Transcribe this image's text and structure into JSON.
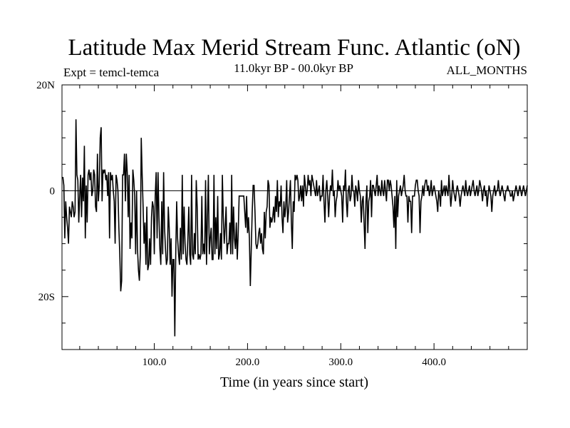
{
  "chart_data": {
    "type": "line",
    "title": "Latitude Max Merid Stream Func. Atlantic (oN)",
    "subtitle_left": "Expt = temcl-temca",
    "subtitle_center": "11.0kyr BP - 00.0kyr BP",
    "subtitle_right": "ALL_MONTHS",
    "xlabel": "Time (in years since start)",
    "ylabel": "",
    "xlim": [
      1,
      500
    ],
    "ylim": [
      -30,
      20
    ],
    "x_ticks": [
      {
        "value": 100,
        "label": "100.0"
      },
      {
        "value": 200,
        "label": "200.0"
      },
      {
        "value": 300,
        "label": "300.0"
      },
      {
        "value": 400,
        "label": "400.0"
      }
    ],
    "y_ticks": [
      {
        "value": 20,
        "label": "20N"
      },
      {
        "value": 0,
        "label": "0"
      },
      {
        "value": -20,
        "label": "20S"
      }
    ],
    "reference_line": 0,
    "series": [
      {
        "name": "latitude",
        "x_start": 1,
        "x_step": 1,
        "values": [
          2.5,
          2.5,
          1.0,
          -9.0,
          -2.0,
          -5.0,
          -7.0,
          -10.0,
          -3.0,
          -4.0,
          -5.0,
          -2.0,
          -3.0,
          -5.0,
          -4.0,
          13.5,
          3.0,
          2.0,
          -6.0,
          -1.0,
          3.0,
          -5.0,
          2.5,
          -2.0,
          8.5,
          -9.0,
          1.0,
          -6.0,
          3.0,
          4.0,
          2.0,
          3.5,
          -1.0,
          0.0,
          4.0,
          3.0,
          -3.0,
          -4.0,
          7.0,
          -2.0,
          1.0,
          10.0,
          12.0,
          -2.0,
          4.0,
          3.5,
          4.0,
          2.0,
          3.0,
          -1.0,
          3.5,
          -9.0,
          3.5,
          2.0,
          3.0,
          0.0,
          -2.0,
          -10.0,
          3.0,
          2.0,
          0.0,
          -7.0,
          -12.0,
          -19.0,
          -17.0,
          3.0,
          3.0,
          7.0,
          -2.0,
          7.0,
          3.5,
          -5.0,
          3.0,
          -11.0,
          -6.0,
          -9.0,
          4.0,
          2.0,
          -1.0,
          -12.0,
          0.0,
          -11.0,
          -15.0,
          -17.0,
          -12.0,
          10.0,
          3.0,
          -3.0,
          -10.0,
          -6.0,
          -14.0,
          -3.0,
          -15.0,
          -14.0,
          -9.0,
          -14.0,
          -5.0,
          -2.0,
          -3.0,
          -12.0,
          -1.0,
          3.5,
          -9.0,
          3.5,
          -5.0,
          -11.0,
          -14.0,
          -2.0,
          -12.0,
          3.5,
          -7.0,
          -11.0,
          -14.0,
          -13.0,
          -3.0,
          -7.0,
          -14.0,
          -9.0,
          -20.0,
          -13.0,
          -13.0,
          -27.5,
          -12.0,
          -2.0,
          -9.0,
          -12.0,
          -14.0,
          -7.0,
          -13.0,
          3.0,
          -12.0,
          -3.0,
          -10.0,
          -13.0,
          -14.0,
          -9.0,
          -3.0,
          -12.0,
          -14.0,
          3.0,
          -12.0,
          -13.0,
          -8.0,
          -12.0,
          2.0,
          -3.0,
          -13.0,
          -12.0,
          -13.0,
          -12.0,
          -1.0,
          -12.0,
          -10.0,
          -12.0,
          2.0,
          -14.0,
          -5.0,
          3.0,
          -12.0,
          -9.0,
          -7.0,
          -13.0,
          -13.0,
          3.0,
          -12.0,
          -5.0,
          -11.0,
          -1.0,
          -13.0,
          -12.0,
          -8.0,
          -13.0,
          3.0,
          -5.0,
          -10.0,
          -7.0,
          -3.0,
          -12.0,
          -10.0,
          -10.0,
          -6.0,
          -12.0,
          3.0,
          -12.0,
          -3.0,
          -9.0,
          -11.0,
          -6.0,
          -13.0,
          -8.0,
          -1.0,
          -1.0,
          -1.0,
          -1.0,
          -1.0,
          -1.0,
          -4.0,
          -7.0,
          -1.0,
          -8.0,
          -5.0,
          -9.0,
          -18.0,
          -11.0,
          -4.0,
          1.0,
          1.0,
          -4.0,
          -10.0,
          -11.0,
          -10.0,
          -8.0,
          -7.0,
          -10.0,
          -8.0,
          -11.0,
          -12.0,
          -4.0,
          -9.0,
          -4.0,
          -3.0,
          2.0,
          1.0,
          -7.0,
          -5.0,
          -6.0,
          -5.0,
          -3.0,
          -6.0,
          -1.0,
          -4.0,
          2.0,
          -5.0,
          -2.0,
          -3.0,
          1.0,
          -5.0,
          -8.0,
          -2.0,
          -5.0,
          -3.0,
          2.0,
          -6.0,
          -4.0,
          -1.0,
          2.0,
          -6.0,
          -11.0,
          -2.0,
          -4.0,
          3.0,
          2.0,
          3.0,
          2.0,
          -2.0,
          -1.0,
          1.0,
          -2.0,
          1.0,
          -3.0,
          3.0,
          1.0,
          -1.0,
          0.0,
          3.0,
          1.0,
          2.0,
          -1.0,
          3.0,
          2.0,
          1.0,
          0.0,
          -1.0,
          2.0,
          -1.0,
          0.0,
          1.0,
          -2.0,
          -1.0,
          -1.0,
          3.0,
          -2.0,
          -6.0,
          0.0,
          2.0,
          -1.0,
          -5.0,
          -1.0,
          1.0,
          0.0,
          4.0,
          -1.0,
          0.0,
          -5.0,
          -2.0,
          -1.0,
          2.0,
          0.0,
          1.0,
          0.0,
          -1.0,
          -6.0,
          1.0,
          0.0,
          4.0,
          -2.0,
          -5.0,
          0.0,
          1.0,
          -2.0,
          -1.0,
          3.0,
          0.0,
          0.0,
          -3.0,
          1.0,
          0.0,
          -2.0,
          2.0,
          0.0,
          -1.0,
          -6.0,
          -2.0,
          -1.0,
          -6.0,
          -11.0,
          -2.0,
          1.0,
          -8.0,
          -2.0,
          -1.0,
          2.0,
          -5.0,
          1.0,
          1.0,
          0.0,
          -1.0,
          1.0,
          3.0,
          -1.0,
          1.0,
          0.0,
          -1.0,
          2.0,
          0.0,
          -1.0,
          2.0,
          0.0,
          -2.0,
          2.0,
          2.0,
          0.0,
          2.0,
          1.0,
          -1.0,
          -3.0,
          -7.0,
          -1.0,
          -11.0,
          2.0,
          -5.0,
          -1.0,
          0.0,
          1.0,
          -1.0,
          0.0,
          1.0,
          3.0,
          0.0,
          -1.0,
          -1.0,
          -6.0,
          -1.0,
          -2.0,
          -2.0,
          -8.0,
          -1.0,
          -1.0,
          -1.0,
          1.0,
          2.0,
          2.0,
          0.0,
          -1.0,
          -8.0,
          -2.0,
          -1.0,
          1.0,
          -1.0,
          1.0,
          2.0,
          2.0,
          0.0,
          1.0,
          -1.0,
          0.0,
          2.0,
          -1.0,
          0.0,
          1.0,
          0.0,
          -1.0,
          -2.0,
          -4.0,
          0.0,
          -1.0,
          -3.0,
          2.0,
          -1.0,
          0.0,
          1.0,
          -1.0,
          1.0,
          0.0,
          -1.0,
          3.0,
          0.0,
          -3.0,
          -1.0,
          2.0,
          0.0,
          -1.0,
          -2.0,
          0.0,
          1.0,
          0.0,
          -1.0,
          -3.0,
          -1.0,
          0.0,
          1.0,
          0.0,
          -1.0,
          2.0,
          0.0,
          -1.0,
          0.0,
          1.0,
          -1.0,
          0.0,
          1.0,
          2.0,
          0.0,
          -1.0,
          0.0,
          1.0,
          -1.0,
          0.0,
          2.0,
          1.0,
          0.0,
          -2.0,
          0.0,
          1.0,
          -1.0,
          0.0,
          -3.0,
          -1.0,
          1.0,
          0.0,
          -1.0,
          -4.0,
          -1.0,
          0.0,
          1.0,
          -1.0,
          0.0,
          0.0,
          2.0,
          0.0,
          -1.0,
          0.0,
          1.0,
          0.0,
          -1.0,
          -2.0,
          0.0,
          0.0,
          1.0,
          0.0,
          0.0,
          -1.0,
          -1.0,
          0.0,
          -2.0,
          -1.0,
          0.0,
          1.0,
          0.0,
          -1.0,
          0.0,
          1.0,
          0.0,
          -1.0,
          0.0,
          1.0,
          0.0,
          -1.0,
          0.0,
          1.0
        ]
      }
    ]
  }
}
